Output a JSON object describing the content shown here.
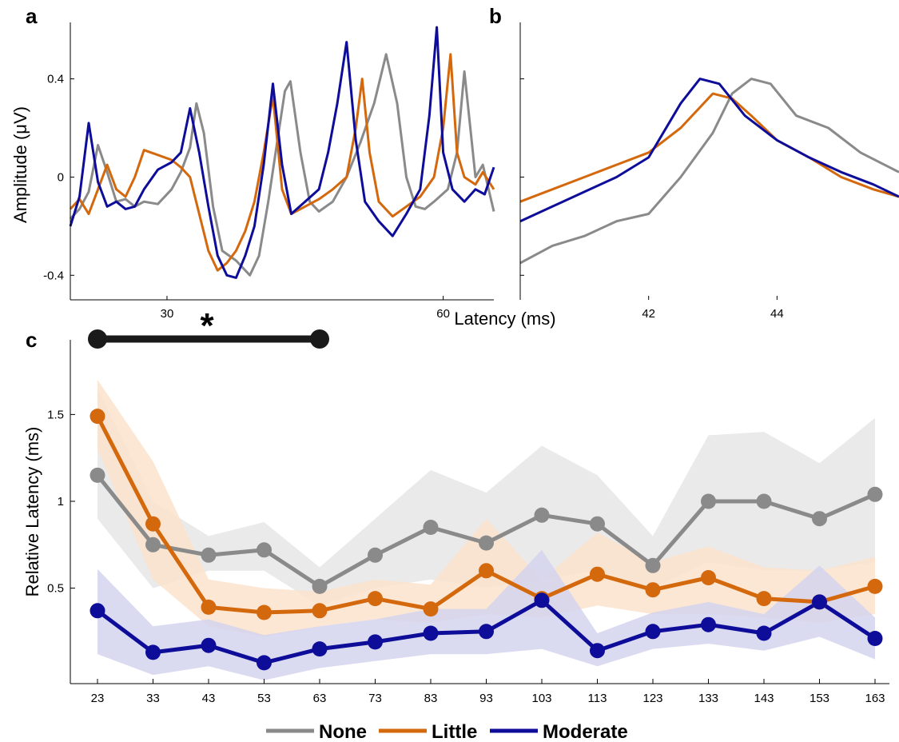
{
  "panels": {
    "a": "a",
    "b": "b",
    "c": "c"
  },
  "colors": {
    "none": "#8a8a8a",
    "little": "#d4680d",
    "moderate": "#0d0d9a",
    "none_band": "#e6e6e6",
    "little_band": "#fbe3cd",
    "moderate_band": "#d3d3ef"
  },
  "legend": [
    {
      "key": "none",
      "label": "None"
    },
    {
      "key": "little",
      "label": "Little"
    },
    {
      "key": "moderate",
      "label": "Moderate"
    }
  ],
  "significance": {
    "marker": "*",
    "from": 23,
    "to": 63
  },
  "chart_data": [
    {
      "id": "a",
      "type": "line",
      "title": "",
      "xlabel": "",
      "ylabel": "Amplitude (μV)",
      "xlim": [
        19.5,
        65.5
      ],
      "ylim": [
        -0.5,
        0.63
      ],
      "xticks": [
        30,
        60
      ],
      "yticks": [
        {
          "v": -0.4,
          "label": "-0.4"
        },
        {
          "v": 0,
          "label": "0"
        },
        {
          "v": 0.4,
          "label": "0.4"
        }
      ],
      "series": [
        {
          "key": "none",
          "points": [
            [
              19.5,
              -0.17
            ],
            [
              20.5,
              -0.13
            ],
            [
              21.5,
              -0.06
            ],
            [
              22.5,
              0.13
            ],
            [
              23.5,
              0.02
            ],
            [
              24.5,
              -0.1
            ],
            [
              25.5,
              -0.09
            ],
            [
              26.5,
              -0.12
            ],
            [
              27.5,
              -0.1
            ],
            [
              29,
              -0.11
            ],
            [
              30.5,
              -0.05
            ],
            [
              31.5,
              0.02
            ],
            [
              32.5,
              0.12
            ],
            [
              33.2,
              0.3
            ],
            [
              34,
              0.18
            ],
            [
              35,
              -0.12
            ],
            [
              36,
              -0.3
            ],
            [
              37.5,
              -0.34
            ],
            [
              39,
              -0.4
            ],
            [
              40,
              -0.32
            ],
            [
              41,
              -0.1
            ],
            [
              42,
              0.15
            ],
            [
              42.8,
              0.35
            ],
            [
              43.4,
              0.39
            ],
            [
              44.5,
              0.1
            ],
            [
              45.5,
              -0.1
            ],
            [
              46.5,
              -0.14
            ],
            [
              48,
              -0.1
            ],
            [
              49.5,
              0.0
            ],
            [
              51,
              0.14
            ],
            [
              52.5,
              0.3
            ],
            [
              53.8,
              0.5
            ],
            [
              55,
              0.3
            ],
            [
              56,
              0.0
            ],
            [
              57,
              -0.12
            ],
            [
              58,
              -0.13
            ],
            [
              59,
              -0.1
            ],
            [
              60.5,
              -0.05
            ],
            [
              61.5,
              0.1
            ],
            [
              62.3,
              0.43
            ],
            [
              63,
              0.18
            ],
            [
              63.5,
              0.0
            ],
            [
              64.3,
              0.05
            ],
            [
              65.5,
              -0.14
            ]
          ]
        },
        {
          "key": "little",
          "points": [
            [
              19.5,
              -0.13
            ],
            [
              20.5,
              -0.09
            ],
            [
              21.5,
              -0.15
            ],
            [
              22.5,
              -0.05
            ],
            [
              23.5,
              0.05
            ],
            [
              24.5,
              -0.05
            ],
            [
              25.5,
              -0.08
            ],
            [
              26.5,
              0.0
            ],
            [
              27.5,
              0.11
            ],
            [
              29,
              0.09
            ],
            [
              30.5,
              0.07
            ],
            [
              31.5,
              0.04
            ],
            [
              32.5,
              0.0
            ],
            [
              33.5,
              -0.15
            ],
            [
              34.5,
              -0.3
            ],
            [
              35.5,
              -0.38
            ],
            [
              36.5,
              -0.35
            ],
            [
              37.5,
              -0.3
            ],
            [
              38.5,
              -0.22
            ],
            [
              39.5,
              -0.1
            ],
            [
              40.5,
              0.1
            ],
            [
              41.5,
              0.33
            ],
            [
              42.5,
              -0.05
            ],
            [
              43.5,
              -0.15
            ],
            [
              45,
              -0.12
            ],
            [
              46.5,
              -0.09
            ],
            [
              48,
              -0.05
            ],
            [
              49.5,
              0.0
            ],
            [
              50.5,
              0.2
            ],
            [
              51.2,
              0.4
            ],
            [
              52,
              0.1
            ],
            [
              53,
              -0.1
            ],
            [
              54.5,
              -0.16
            ],
            [
              56,
              -0.12
            ],
            [
              57.5,
              -0.08
            ],
            [
              59,
              0.0
            ],
            [
              60,
              0.2
            ],
            [
              60.8,
              0.5
            ],
            [
              61.5,
              0.1
            ],
            [
              62.3,
              0.0
            ],
            [
              63.5,
              -0.03
            ],
            [
              64.3,
              0.02
            ],
            [
              65.5,
              -0.05
            ]
          ]
        },
        {
          "key": "moderate",
          "points": [
            [
              19.5,
              -0.2
            ],
            [
              20.5,
              -0.08
            ],
            [
              21.5,
              0.22
            ],
            [
              22.5,
              -0.02
            ],
            [
              23.5,
              -0.12
            ],
            [
              24.5,
              -0.1
            ],
            [
              25.5,
              -0.13
            ],
            [
              26.5,
              -0.12
            ],
            [
              27.5,
              -0.05
            ],
            [
              29,
              0.03
            ],
            [
              30.5,
              0.06
            ],
            [
              31.5,
              0.1
            ],
            [
              32.5,
              0.28
            ],
            [
              33.5,
              0.1
            ],
            [
              34.5,
              -0.12
            ],
            [
              35.5,
              -0.32
            ],
            [
              36.5,
              -0.4
            ],
            [
              37.5,
              -0.41
            ],
            [
              38.5,
              -0.32
            ],
            [
              39.5,
              -0.2
            ],
            [
              40.5,
              0.05
            ],
            [
              41.5,
              0.38
            ],
            [
              42.5,
              0.05
            ],
            [
              43.5,
              -0.15
            ],
            [
              45,
              -0.1
            ],
            [
              46.5,
              -0.05
            ],
            [
              47.5,
              0.1
            ],
            [
              48.5,
              0.3
            ],
            [
              49.5,
              0.55
            ],
            [
              50.5,
              0.15
            ],
            [
              51.5,
              -0.1
            ],
            [
              53,
              -0.18
            ],
            [
              54.5,
              -0.24
            ],
            [
              56,
              -0.15
            ],
            [
              57.5,
              -0.05
            ],
            [
              58.5,
              0.25
            ],
            [
              59.3,
              0.61
            ],
            [
              60,
              0.1
            ],
            [
              61,
              -0.05
            ],
            [
              62.3,
              -0.1
            ],
            [
              63.5,
              -0.05
            ],
            [
              64.5,
              -0.07
            ],
            [
              65.5,
              0.04
            ]
          ]
        }
      ]
    },
    {
      "id": "b",
      "type": "line",
      "title": "",
      "xlabel": "Latency (ms)",
      "ylabel": "",
      "xlim": [
        40.0,
        45.9
      ],
      "ylim": [
        -0.5,
        0.63
      ],
      "xticks": [
        42,
        44
      ],
      "yticks": [
        {
          "v": -0.4,
          "label": ""
        },
        {
          "v": 0,
          "label": ""
        },
        {
          "v": 0.4,
          "label": ""
        }
      ],
      "series": [
        {
          "key": "none",
          "points": [
            [
              40.0,
              -0.35
            ],
            [
              40.5,
              -0.28
            ],
            [
              41.0,
              -0.24
            ],
            [
              41.5,
              -0.18
            ],
            [
              42.0,
              -0.15
            ],
            [
              42.5,
              0.0
            ],
            [
              43.0,
              0.18
            ],
            [
              43.3,
              0.34
            ],
            [
              43.6,
              0.4
            ],
            [
              43.9,
              0.38
            ],
            [
              44.3,
              0.25
            ],
            [
              44.8,
              0.2
            ],
            [
              45.3,
              0.1
            ],
            [
              45.9,
              0.02
            ]
          ]
        },
        {
          "key": "little",
          "points": [
            [
              40.0,
              -0.1
            ],
            [
              40.5,
              -0.05
            ],
            [
              41.0,
              0.0
            ],
            [
              41.5,
              0.05
            ],
            [
              42.0,
              0.1
            ],
            [
              42.5,
              0.2
            ],
            [
              43.0,
              0.34
            ],
            [
              43.3,
              0.32
            ],
            [
              43.6,
              0.25
            ],
            [
              44.0,
              0.15
            ],
            [
              44.5,
              0.08
            ],
            [
              45.0,
              0.0
            ],
            [
              45.5,
              -0.05
            ],
            [
              45.9,
              -0.08
            ]
          ]
        },
        {
          "key": "moderate",
          "points": [
            [
              40.0,
              -0.18
            ],
            [
              40.5,
              -0.12
            ],
            [
              41.0,
              -0.06
            ],
            [
              41.5,
              0.0
            ],
            [
              42.0,
              0.08
            ],
            [
              42.5,
              0.3
            ],
            [
              42.8,
              0.4
            ],
            [
              43.1,
              0.38
            ],
            [
              43.5,
              0.25
            ],
            [
              44.0,
              0.15
            ],
            [
              44.5,
              0.08
            ],
            [
              45.0,
              0.02
            ],
            [
              45.5,
              -0.03
            ],
            [
              45.9,
              -0.08
            ]
          ]
        }
      ]
    },
    {
      "id": "c",
      "type": "line",
      "title": "",
      "xlabel": "",
      "ylabel": "Relative Latency (ms)",
      "ylim": [
        -0.05,
        1.93
      ],
      "yticks": [
        0.5,
        1,
        1.5
      ],
      "ytick_labels": [
        "0.5",
        "1",
        "1.5"
      ],
      "x": [
        23,
        33,
        43,
        53,
        63,
        73,
        83,
        93,
        103,
        113,
        123,
        133,
        143,
        153,
        163
      ],
      "series": [
        {
          "key": "none",
          "name": "None",
          "values": [
            1.15,
            0.75,
            0.69,
            0.72,
            0.51,
            0.69,
            0.85,
            0.76,
            0.92,
            0.87,
            0.63,
            1.0,
            1.0,
            0.9,
            1.04
          ],
          "lower": [
            0.9,
            0.5,
            0.6,
            0.6,
            0.4,
            0.5,
            0.55,
            0.5,
            0.55,
            0.6,
            0.5,
            0.65,
            0.6,
            0.6,
            0.65
          ],
          "upper": [
            1.65,
            1.0,
            0.8,
            0.88,
            0.62,
            0.9,
            1.18,
            1.05,
            1.32,
            1.15,
            0.8,
            1.38,
            1.4,
            1.22,
            1.48
          ]
        },
        {
          "key": "little",
          "name": "Little",
          "values": [
            1.49,
            0.87,
            0.39,
            0.36,
            0.37,
            0.44,
            0.38,
            0.6,
            0.44,
            0.58,
            0.49,
            0.56,
            0.44,
            0.42,
            0.51
          ],
          "lower": [
            1.3,
            0.55,
            0.28,
            0.22,
            0.28,
            0.32,
            0.3,
            0.35,
            0.33,
            0.4,
            0.35,
            0.35,
            0.33,
            0.3,
            0.35
          ],
          "upper": [
            1.7,
            1.23,
            0.55,
            0.5,
            0.48,
            0.55,
            0.52,
            0.9,
            0.55,
            0.82,
            0.65,
            0.74,
            0.62,
            0.6,
            0.68
          ]
        },
        {
          "key": "moderate",
          "name": "Moderate",
          "values": [
            0.37,
            0.13,
            0.17,
            0.07,
            0.15,
            0.19,
            0.24,
            0.25,
            0.43,
            0.14,
            0.25,
            0.29,
            0.24,
            0.42,
            0.21
          ],
          "lower": [
            0.12,
            0.0,
            0.05,
            -0.03,
            0.04,
            0.08,
            0.12,
            0.12,
            0.15,
            0.05,
            0.15,
            0.18,
            0.14,
            0.22,
            0.09
          ],
          "upper": [
            0.61,
            0.28,
            0.32,
            0.23,
            0.28,
            0.32,
            0.38,
            0.38,
            0.72,
            0.24,
            0.36,
            0.42,
            0.35,
            0.63,
            0.33
          ]
        }
      ]
    }
  ]
}
